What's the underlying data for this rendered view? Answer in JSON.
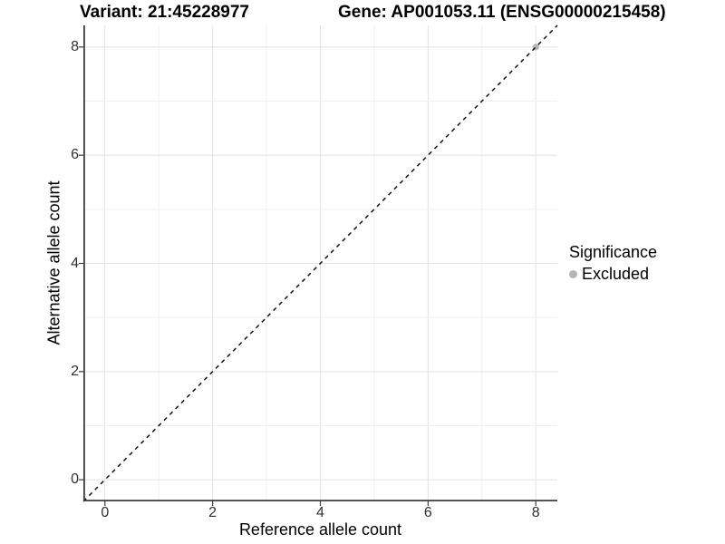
{
  "titles": {
    "variant": "Variant: 21:45228977",
    "gene": "Gene: AP001053.11 (ENSG00000215458)"
  },
  "axes": {
    "x_label": "Reference allele count",
    "y_label": "Alternative allele count"
  },
  "legend": {
    "title": "Significance",
    "items": [
      {
        "label": "Excluded",
        "color": "#b5b5b5"
      }
    ]
  },
  "chart_data": {
    "type": "scatter",
    "title_left": "Variant: 21:45228977",
    "title_right": "Gene: AP001053.11 (ENSG00000215458)",
    "xlabel": "Reference allele count",
    "ylabel": "Alternative allele count",
    "xlim": [
      -0.4,
      8.4
    ],
    "ylim": [
      -0.4,
      8.4
    ],
    "x_ticks": [
      0,
      2,
      4,
      6,
      8
    ],
    "y_ticks": [
      0,
      2,
      4,
      6,
      8
    ],
    "minor_grid_step": 1,
    "grid": "major and minor gridlines on, light gray, white panel background",
    "legend_position": "right-center",
    "series": [
      {
        "name": "Excluded",
        "color": "#b5b5b5",
        "points": [
          {
            "x": 8,
            "y": 8
          }
        ]
      }
    ],
    "abline": {
      "slope": 1,
      "intercept": 0,
      "style": "dashed",
      "color": "#111111"
    },
    "colors": {
      "grid_major": "#e3e3e3",
      "grid_minor": "#efefef",
      "axis_line": "#3d3d3d",
      "tick_text": "#303030",
      "point_excluded": "#b5b5b5"
    }
  }
}
